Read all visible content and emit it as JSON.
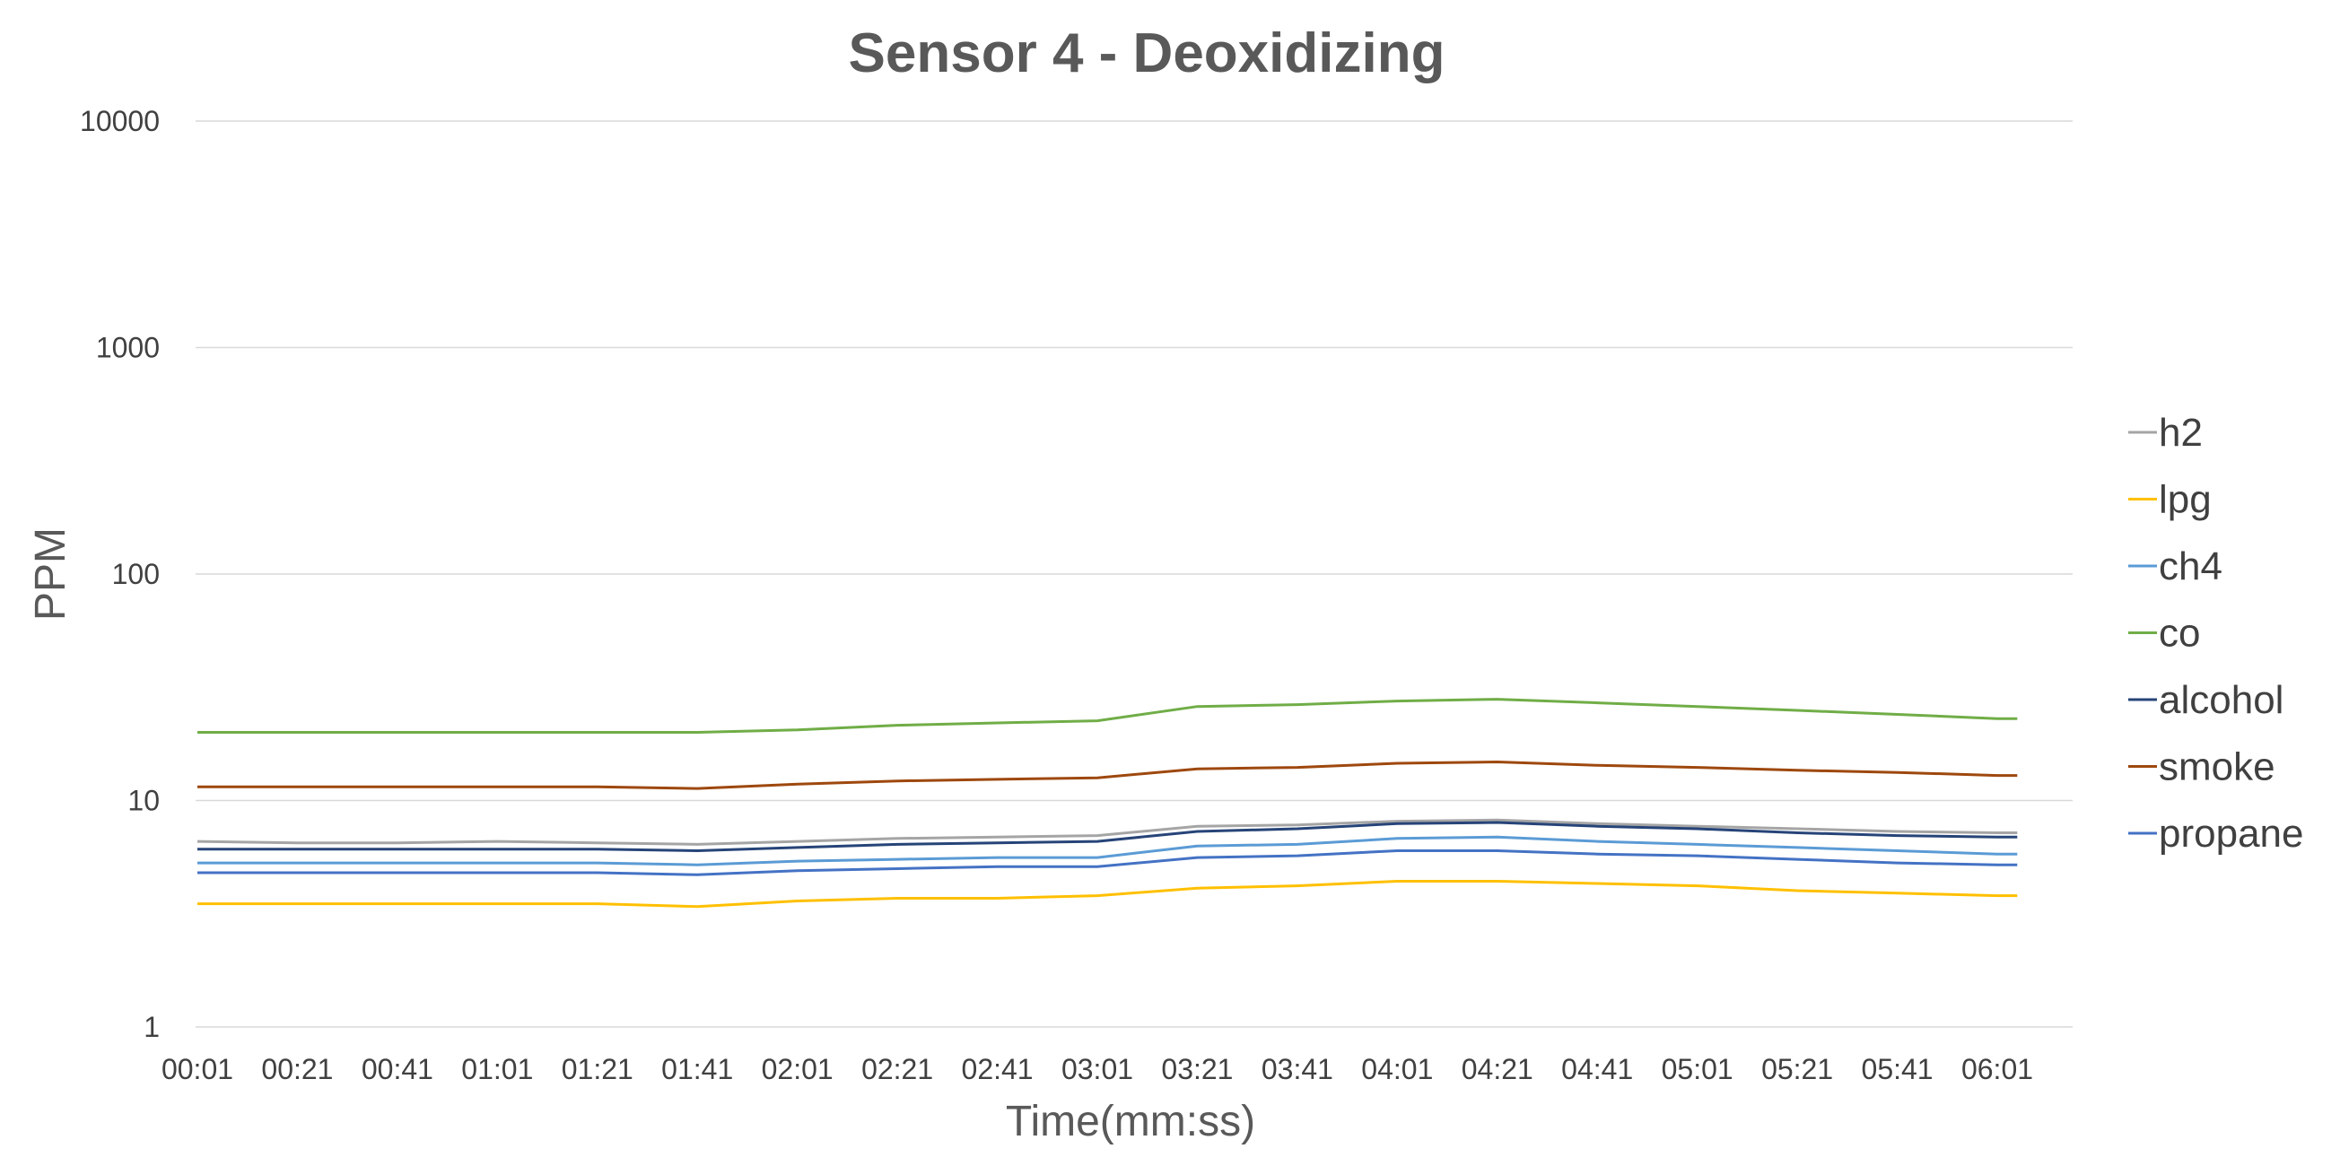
{
  "chart_data": {
    "type": "line",
    "title": "Sensor 4 - Deoxidizing",
    "xlabel": "Time(mm:ss)",
    "ylabel": "PPM",
    "y_scale": "log",
    "ylim": [
      1,
      10000
    ],
    "y_ticks": [
      "1",
      "10",
      "100",
      "1000",
      "10000"
    ],
    "x_tick_labels": [
      "00:01",
      "00:21",
      "00:41",
      "01:01",
      "01:21",
      "01:41",
      "02:01",
      "02:21",
      "02:41",
      "03:01",
      "03:21",
      "03:41",
      "04:01",
      "04:21",
      "04:41",
      "05:01",
      "05:21",
      "05:41",
      "06:01"
    ],
    "x_times": [
      "00:01",
      "00:21",
      "00:41",
      "01:01",
      "01:21",
      "01:41",
      "02:01",
      "02:21",
      "02:41",
      "03:01",
      "03:21",
      "03:41",
      "04:01",
      "04:21",
      "04:41",
      "05:01",
      "05:21",
      "05:41",
      "06:01",
      "06:05"
    ],
    "grid": true,
    "legend_position": "right",
    "series": [
      {
        "name": "h2",
        "color": "#a5a5a5",
        "values": [
          6.6,
          6.5,
          6.5,
          6.6,
          6.5,
          6.4,
          6.6,
          6.8,
          6.9,
          7.0,
          7.7,
          7.8,
          8.1,
          8.2,
          7.9,
          7.7,
          7.5,
          7.3,
          7.2,
          7.2
        ]
      },
      {
        "name": "lpg",
        "color": "#ffc000",
        "values": [
          3.5,
          3.5,
          3.5,
          3.5,
          3.5,
          3.4,
          3.6,
          3.7,
          3.7,
          3.8,
          4.1,
          4.2,
          4.4,
          4.4,
          4.3,
          4.2,
          4.0,
          3.9,
          3.8,
          3.8
        ]
      },
      {
        "name": "ch4",
        "color": "#5b9bd5",
        "values": [
          5.3,
          5.3,
          5.3,
          5.3,
          5.3,
          5.2,
          5.4,
          5.5,
          5.6,
          5.6,
          6.3,
          6.4,
          6.8,
          6.9,
          6.6,
          6.4,
          6.2,
          6.0,
          5.8,
          5.8
        ]
      },
      {
        "name": "co",
        "color": "#70ad47",
        "values": [
          20,
          20,
          20,
          20,
          20,
          20,
          20.5,
          21.5,
          22,
          22.5,
          26,
          26.5,
          27.5,
          28,
          27,
          26,
          25,
          24,
          23,
          23
        ]
      },
      {
        "name": "alcohol",
        "color": "#264478",
        "values": [
          6.1,
          6.1,
          6.1,
          6.1,
          6.1,
          6.0,
          6.2,
          6.4,
          6.5,
          6.6,
          7.3,
          7.5,
          7.9,
          8.0,
          7.7,
          7.5,
          7.2,
          7.0,
          6.9,
          6.9
        ]
      },
      {
        "name": "smoke",
        "color": "#9e480e",
        "values": [
          11.5,
          11.5,
          11.5,
          11.5,
          11.5,
          11.3,
          11.8,
          12.2,
          12.4,
          12.6,
          13.8,
          14.0,
          14.6,
          14.8,
          14.3,
          14.0,
          13.6,
          13.3,
          12.9,
          12.9
        ]
      },
      {
        "name": "propane",
        "color": "#4472c4",
        "values": [
          4.8,
          4.8,
          4.8,
          4.8,
          4.8,
          4.7,
          4.9,
          5.0,
          5.1,
          5.1,
          5.6,
          5.7,
          6.0,
          6.0,
          5.8,
          5.7,
          5.5,
          5.3,
          5.2,
          5.2
        ]
      }
    ]
  }
}
